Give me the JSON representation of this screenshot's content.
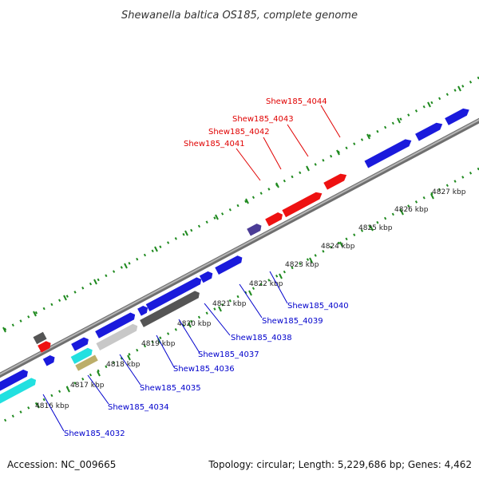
{
  "title": "Shewanella baltica OS185, complete genome",
  "footer": {
    "accession": "Accession: NC_009665",
    "summary": "Topology: circular; Length: 5,229,686 bp; Genes: 4,462"
  },
  "colors": {
    "backbone": "#8c8c8c",
    "dots": "#1f8a1f",
    "highlight_label": "#e00000",
    "normal_label": "#0000cc",
    "gene_blue": "#1a1adc",
    "gene_red": "#ee1111",
    "gene_cyan": "#22e0e0",
    "gene_darkgray": "#555555",
    "gene_lightgray": "#c8c8c8",
    "gene_purple": "#4b3c96",
    "gene_khaki": "#bcae6a"
  },
  "ticks": [
    "4816 kbp",
    "4817 kbp",
    "4818 kbp",
    "4819 kbp",
    "4820 kbp",
    "4821 kbp",
    "4822 kbp",
    "4823 kbp",
    "4824 kbp",
    "4825 kbp",
    "4826 kbp",
    "4827 kbp"
  ],
  "labels_top": [
    "Shew185_4041",
    "Shew185_4042",
    "Shew185_4043",
    "Shew185_4044"
  ],
  "labels_bottom": [
    "Shew185_4032",
    "Shew185_4034",
    "Shew185_4035",
    "Shew185_4036",
    "Shew185_4037",
    "Shew185_4038",
    "Shew185_4039",
    "Shew185_4040"
  ]
}
